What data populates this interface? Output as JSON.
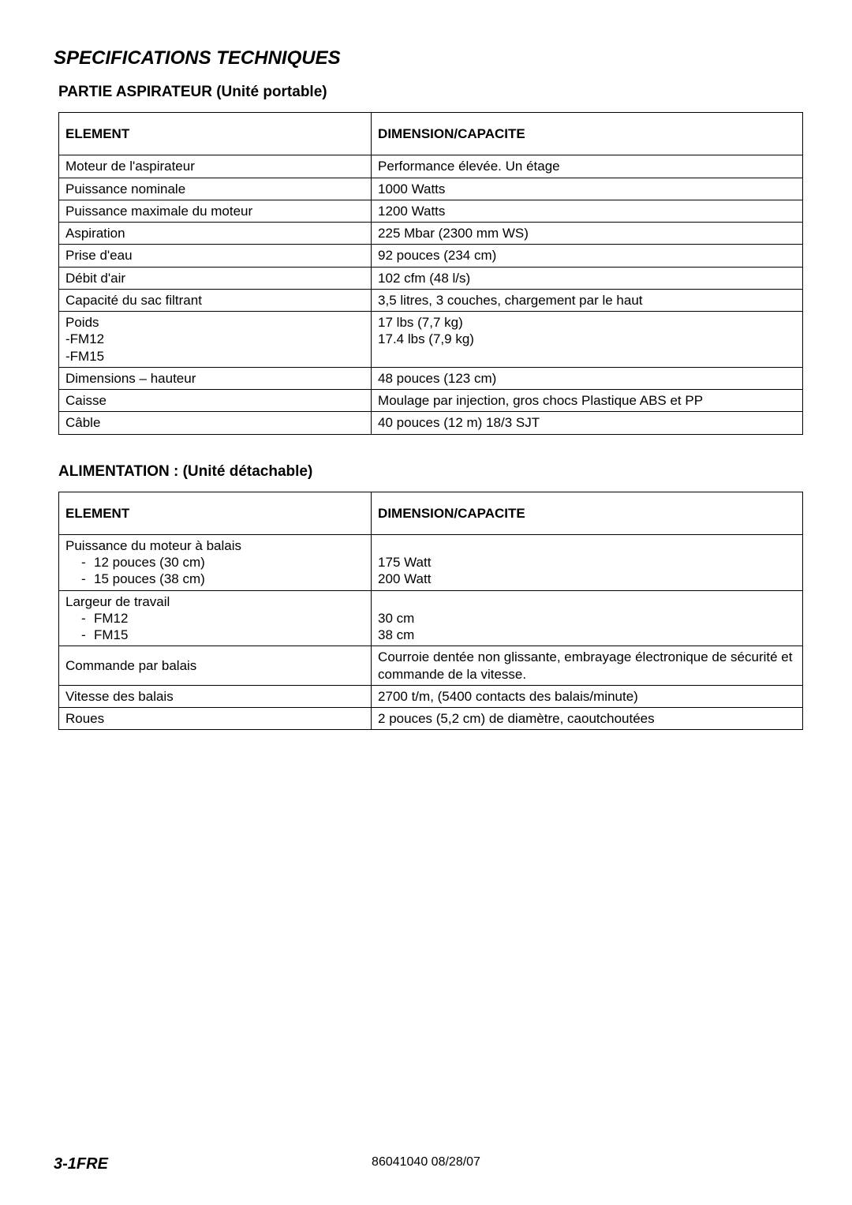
{
  "title": "SPECIFICATIONS TECHNIQUES",
  "section1": {
    "title": "PARTIE ASPIRATEUR (Unité portable)",
    "header_element": "ELEMENT",
    "header_dimension": "DIMENSION/CAPACITE",
    "rows": [
      {
        "element": "Moteur de l'aspirateur",
        "dimension": "Performance élevée. Un étage"
      },
      {
        "element": "Puissance nominale",
        "dimension": "1000 Watts"
      },
      {
        "element": "Puissance maximale du moteur",
        "dimension": "1200 Watts"
      },
      {
        "element": "Aspiration",
        "dimension": "225 Mbar (2300 mm WS)"
      },
      {
        "element": "Prise d'eau",
        "dimension": "92 pouces (234 cm)"
      },
      {
        "element": "Débit d'air",
        "dimension": "102 cfm (48 l/s)"
      },
      {
        "element": "Capacité du sac filtrant",
        "dimension": "3,5 litres, 3 couches, chargement par le haut"
      },
      {
        "element_multi": [
          "Poids",
          "-FM12",
          "-FM15"
        ],
        "dimension_multi": [
          "",
          "17 lbs (7,7 kg)",
          "17.4 lbs (7,9 kg)"
        ]
      },
      {
        "element": "Dimensions – hauteur",
        "dimension": "48 pouces (123 cm)"
      },
      {
        "element": "Caisse",
        "dimension": "Moulage par injection, gros chocs Plastique ABS et PP"
      },
      {
        "element": "Câble",
        "dimension": "40 pouces (12 m) 18/3 SJT"
      }
    ]
  },
  "section2": {
    "title": "ALIMENTATION : (Unité détachable)",
    "header_element": "ELEMENT",
    "header_dimension": "DIMENSION/CAPACITE",
    "rows": [
      {
        "element_main": "Puissance du moteur à balais",
        "element_subs": [
          "12 pouces (30 cm)",
          "15 pouces (38 cm)"
        ],
        "dimension_main": "",
        "dimension_subs": [
          "175 Watt",
          "200 Watt"
        ]
      },
      {
        "element_main": "Largeur de travail",
        "element_subs": [
          "FM12",
          "FM15"
        ],
        "dimension_main": "",
        "dimension_subs": [
          "30 cm",
          "38 cm"
        ]
      },
      {
        "element": "Commande par balais",
        "dimension": "Courroie dentée non glissante, embrayage électronique de sécurité et commande de la vitesse."
      },
      {
        "element": "Vitesse des balais",
        "dimension": "2700 t/m, (5400 contacts des balais/minute)"
      },
      {
        "element": "Roues",
        "dimension": "2 pouces (5,2 cm) de diamètre, caoutchoutées"
      }
    ]
  },
  "footer": {
    "page_ref": "3-1FRE",
    "doc_ref": "86041040  08/28/07"
  }
}
